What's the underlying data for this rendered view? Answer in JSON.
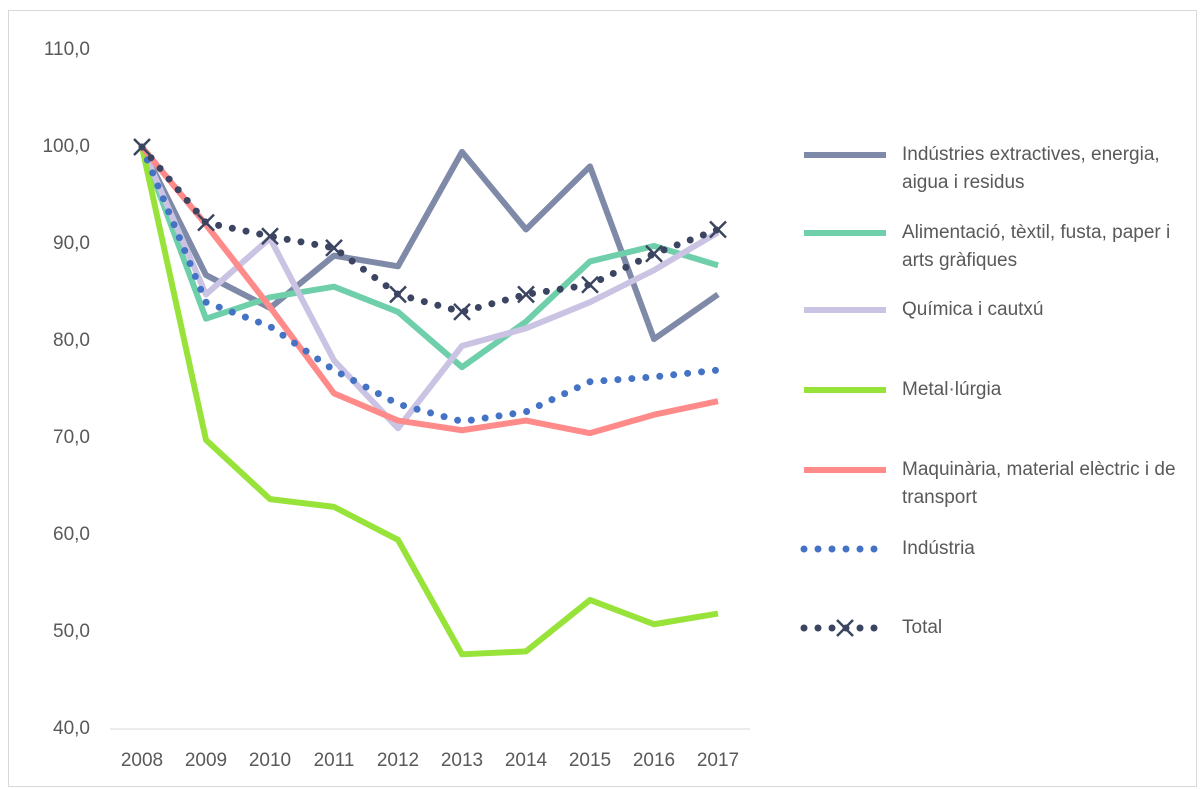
{
  "chart_data": {
    "type": "line",
    "categories": [
      "2008",
      "2009",
      "2010",
      "2011",
      "2012",
      "2013",
      "2014",
      "2015",
      "2016",
      "2017"
    ],
    "ylim": [
      40,
      110
    ],
    "yticks": [
      {
        "value": 40,
        "label": "40,0"
      },
      {
        "value": 50,
        "label": "50,0"
      },
      {
        "value": 60,
        "label": "60,0"
      },
      {
        "value": 70,
        "label": "70,0"
      },
      {
        "value": 80,
        "label": "80,0"
      },
      {
        "value": 90,
        "label": "90,0"
      },
      {
        "value": 100,
        "label": "100,0"
      },
      {
        "value": 110,
        "label": "110,0"
      }
    ],
    "grid": false,
    "legend": "right",
    "series": [
      {
        "name": "Indústries extractives, energia, aigua i residus",
        "color": "#7f8aa8",
        "style": "solid",
        "values": [
          100,
          86.8,
          83.4,
          88.8,
          87.7,
          99.5,
          91.5,
          98,
          80.2,
          84.8
        ]
      },
      {
        "name": "Alimentació, tèxtil, fusta, paper i arts gràfiques",
        "color": "#6fcfaa",
        "style": "solid",
        "values": [
          100,
          82.3,
          84.5,
          85.6,
          83,
          77.3,
          82,
          88.2,
          89.8,
          87.8
        ]
      },
      {
        "name": "Química i cautxú",
        "color": "#cbc3e3",
        "style": "solid",
        "values": [
          100,
          84.8,
          90.6,
          78,
          71,
          79.5,
          81.3,
          84,
          87.3,
          91.2
        ]
      },
      {
        "name": "Metal·lúrgia",
        "color": "#97e33a",
        "style": "solid",
        "values": [
          100,
          69.8,
          63.7,
          62.9,
          59.5,
          47.7,
          48,
          53.3,
          50.8,
          51.9
        ]
      },
      {
        "name": "Maquinària, material elèctric i de transport",
        "color": "#ff8a8a",
        "style": "solid",
        "values": [
          100,
          92,
          83.5,
          74.6,
          71.8,
          70.8,
          71.8,
          70.5,
          72.4,
          73.8
        ]
      },
      {
        "name": "Indústria",
        "color": "#4472c4",
        "style": "dotted",
        "values": [
          100,
          84,
          81.5,
          77,
          73.5,
          71.7,
          72.7,
          75.8,
          76.3,
          77
        ]
      },
      {
        "name": "Total",
        "color": "#3b4460",
        "style": "dotted",
        "marker": "x",
        "values": [
          100,
          92.2,
          90.8,
          89.6,
          84.8,
          83,
          84.8,
          85.8,
          89,
          91.5
        ]
      }
    ]
  }
}
